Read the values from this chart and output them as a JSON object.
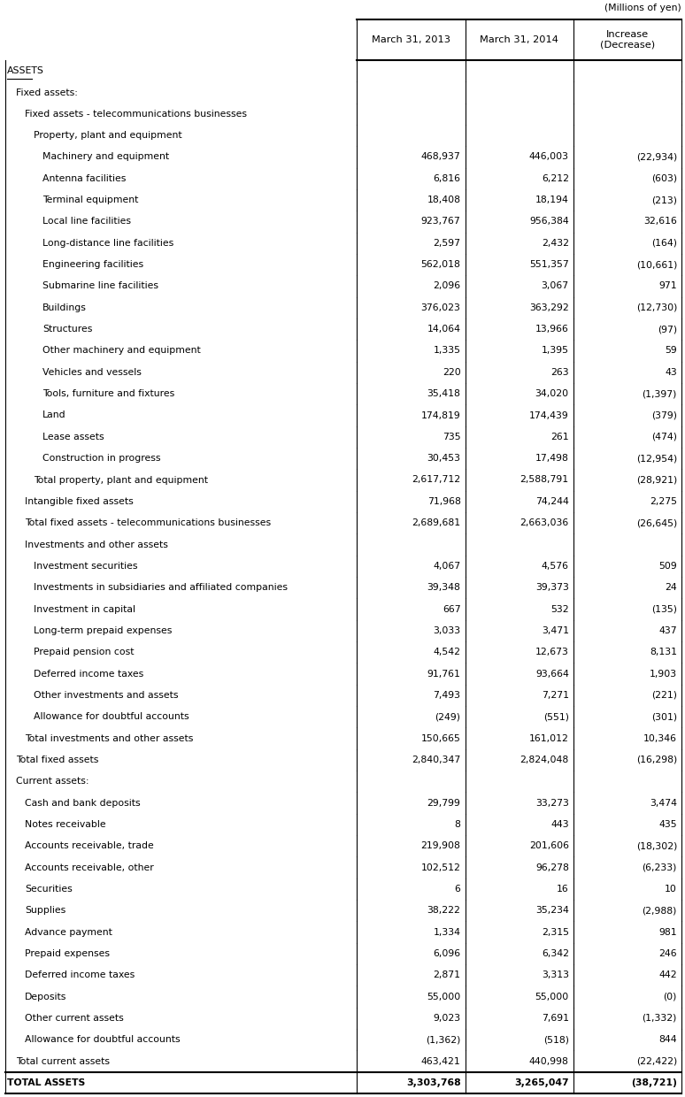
{
  "title_note": "(Millions of yen)",
  "headers": [
    "",
    "March 31, 2013",
    "March 31, 2014",
    "Increase\n(Decrease)"
  ],
  "rows": [
    {
      "label": "ASSETS",
      "indent": 0,
      "v1": "",
      "v2": "",
      "v3": "",
      "style": "underline",
      "bold": false
    },
    {
      "label": "Fixed assets:",
      "indent": 1,
      "v1": "",
      "v2": "",
      "v3": "",
      "style": "normal",
      "bold": false
    },
    {
      "label": "Fixed assets - telecommunications businesses",
      "indent": 2,
      "v1": "",
      "v2": "",
      "v3": "",
      "style": "normal",
      "bold": false
    },
    {
      "label": "Property, plant and equipment",
      "indent": 3,
      "v1": "",
      "v2": "",
      "v3": "",
      "style": "normal",
      "bold": false
    },
    {
      "label": "Machinery and equipment",
      "indent": 4,
      "v1": "468,937",
      "v2": "446,003",
      "v3": "(22,934)",
      "style": "normal",
      "bold": false
    },
    {
      "label": "Antenna facilities",
      "indent": 4,
      "v1": "6,816",
      "v2": "6,212",
      "v3": "(603)",
      "style": "normal",
      "bold": false
    },
    {
      "label": "Terminal equipment",
      "indent": 4,
      "v1": "18,408",
      "v2": "18,194",
      "v3": "(213)",
      "style": "normal",
      "bold": false
    },
    {
      "label": "Local line facilities",
      "indent": 4,
      "v1": "923,767",
      "v2": "956,384",
      "v3": "32,616",
      "style": "normal",
      "bold": false
    },
    {
      "label": "Long-distance line facilities",
      "indent": 4,
      "v1": "2,597",
      "v2": "2,432",
      "v3": "(164)",
      "style": "normal",
      "bold": false
    },
    {
      "label": "Engineering facilities",
      "indent": 4,
      "v1": "562,018",
      "v2": "551,357",
      "v3": "(10,661)",
      "style": "normal",
      "bold": false
    },
    {
      "label": "Submarine line facilities",
      "indent": 4,
      "v1": "2,096",
      "v2": "3,067",
      "v3": "971",
      "style": "normal",
      "bold": false
    },
    {
      "label": "Buildings",
      "indent": 4,
      "v1": "376,023",
      "v2": "363,292",
      "v3": "(12,730)",
      "style": "normal",
      "bold": false
    },
    {
      "label": "Structures",
      "indent": 4,
      "v1": "14,064",
      "v2": "13,966",
      "v3": "(97)",
      "style": "normal",
      "bold": false
    },
    {
      "label": "Other machinery and equipment",
      "indent": 4,
      "v1": "1,335",
      "v2": "1,395",
      "v3": "59",
      "style": "normal",
      "bold": false
    },
    {
      "label": "Vehicles and vessels",
      "indent": 4,
      "v1": "220",
      "v2": "263",
      "v3": "43",
      "style": "normal",
      "bold": false
    },
    {
      "label": "Tools, furniture and fixtures",
      "indent": 4,
      "v1": "35,418",
      "v2": "34,020",
      "v3": "(1,397)",
      "style": "normal",
      "bold": false
    },
    {
      "label": "Land",
      "indent": 4,
      "v1": "174,819",
      "v2": "174,439",
      "v3": "(379)",
      "style": "normal",
      "bold": false
    },
    {
      "label": "Lease assets",
      "indent": 4,
      "v1": "735",
      "v2": "261",
      "v3": "(474)",
      "style": "normal",
      "bold": false
    },
    {
      "label": "Construction in progress",
      "indent": 4,
      "v1": "30,453",
      "v2": "17,498",
      "v3": "(12,954)",
      "style": "normal",
      "bold": false
    },
    {
      "label": "Total property, plant and equipment",
      "indent": 3,
      "v1": "2,617,712",
      "v2": "2,588,791",
      "v3": "(28,921)",
      "style": "normal",
      "bold": false
    },
    {
      "label": "Intangible fixed assets",
      "indent": 2,
      "v1": "71,968",
      "v2": "74,244",
      "v3": "2,275",
      "style": "normal",
      "bold": false
    },
    {
      "label": "Total fixed assets - telecommunications businesses",
      "indent": 2,
      "v1": "2,689,681",
      "v2": "2,663,036",
      "v3": "(26,645)",
      "style": "normal",
      "bold": false
    },
    {
      "label": "Investments and other assets",
      "indent": 2,
      "v1": "",
      "v2": "",
      "v3": "",
      "style": "normal",
      "bold": false
    },
    {
      "label": "Investment securities",
      "indent": 3,
      "v1": "4,067",
      "v2": "4,576",
      "v3": "509",
      "style": "normal",
      "bold": false
    },
    {
      "label": "Investments in subsidiaries and affiliated companies",
      "indent": 3,
      "v1": "39,348",
      "v2": "39,373",
      "v3": "24",
      "style": "normal",
      "bold": false
    },
    {
      "label": "Investment in capital",
      "indent": 3,
      "v1": "667",
      "v2": "532",
      "v3": "(135)",
      "style": "normal",
      "bold": false
    },
    {
      "label": "Long-term prepaid expenses",
      "indent": 3,
      "v1": "3,033",
      "v2": "3,471",
      "v3": "437",
      "style": "normal",
      "bold": false
    },
    {
      "label": "Prepaid pension cost",
      "indent": 3,
      "v1": "4,542",
      "v2": "12,673",
      "v3": "8,131",
      "style": "normal",
      "bold": false
    },
    {
      "label": "Deferred income taxes",
      "indent": 3,
      "v1": "91,761",
      "v2": "93,664",
      "v3": "1,903",
      "style": "normal",
      "bold": false
    },
    {
      "label": "Other investments and assets",
      "indent": 3,
      "v1": "7,493",
      "v2": "7,271",
      "v3": "(221)",
      "style": "normal",
      "bold": false
    },
    {
      "label": "Allowance for doubtful accounts",
      "indent": 3,
      "v1": "(249)",
      "v2": "(551)",
      "v3": "(301)",
      "style": "normal",
      "bold": false
    },
    {
      "label": "Total investments and other assets",
      "indent": 2,
      "v1": "150,665",
      "v2": "161,012",
      "v3": "10,346",
      "style": "normal",
      "bold": false
    },
    {
      "label": "Total fixed assets",
      "indent": 1,
      "v1": "2,840,347",
      "v2": "2,824,048",
      "v3": "(16,298)",
      "style": "normal",
      "bold": false
    },
    {
      "label": "Current assets:",
      "indent": 1,
      "v1": "",
      "v2": "",
      "v3": "",
      "style": "normal",
      "bold": false
    },
    {
      "label": "Cash and bank deposits",
      "indent": 2,
      "v1": "29,799",
      "v2": "33,273",
      "v3": "3,474",
      "style": "normal",
      "bold": false
    },
    {
      "label": "Notes receivable",
      "indent": 2,
      "v1": "8",
      "v2": "443",
      "v3": "435",
      "style": "normal",
      "bold": false
    },
    {
      "label": "Accounts receivable, trade",
      "indent": 2,
      "v1": "219,908",
      "v2": "201,606",
      "v3": "(18,302)",
      "style": "normal",
      "bold": false
    },
    {
      "label": "Accounts receivable, other",
      "indent": 2,
      "v1": "102,512",
      "v2": "96,278",
      "v3": "(6,233)",
      "style": "normal",
      "bold": false
    },
    {
      "label": "Securities",
      "indent": 2,
      "v1": "6",
      "v2": "16",
      "v3": "10",
      "style": "normal",
      "bold": false
    },
    {
      "label": "Supplies",
      "indent": 2,
      "v1": "38,222",
      "v2": "35,234",
      "v3": "(2,988)",
      "style": "normal",
      "bold": false
    },
    {
      "label": "Advance payment",
      "indent": 2,
      "v1": "1,334",
      "v2": "2,315",
      "v3": "981",
      "style": "normal",
      "bold": false
    },
    {
      "label": "Prepaid expenses",
      "indent": 2,
      "v1": "6,096",
      "v2": "6,342",
      "v3": "246",
      "style": "normal",
      "bold": false
    },
    {
      "label": "Deferred income taxes",
      "indent": 2,
      "v1": "2,871",
      "v2": "3,313",
      "v3": "442",
      "style": "normal",
      "bold": false
    },
    {
      "label": "Deposits",
      "indent": 2,
      "v1": "55,000",
      "v2": "55,000",
      "v3": "(0)",
      "style": "normal",
      "bold": false
    },
    {
      "label": "Other current assets",
      "indent": 2,
      "v1": "9,023",
      "v2": "7,691",
      "v3": "(1,332)",
      "style": "normal",
      "bold": false
    },
    {
      "label": "Allowance for doubtful accounts",
      "indent": 2,
      "v1": "(1,362)",
      "v2": "(518)",
      "v3": "844",
      "style": "normal",
      "bold": false
    },
    {
      "label": "Total current assets",
      "indent": 1,
      "v1": "463,421",
      "v2": "440,998",
      "v3": "(22,422)",
      "style": "normal",
      "bold": false
    },
    {
      "label": "TOTAL ASSETS",
      "indent": 0,
      "v1": "3,303,768",
      "v2": "3,265,047",
      "v3": "(38,721)",
      "style": "total",
      "bold": true
    }
  ],
  "bg_color": "#ffffff",
  "border_color": "#000000",
  "text_color": "#000000",
  "font_size": 7.8,
  "header_font_size": 8.2,
  "indent_per_level": 10
}
